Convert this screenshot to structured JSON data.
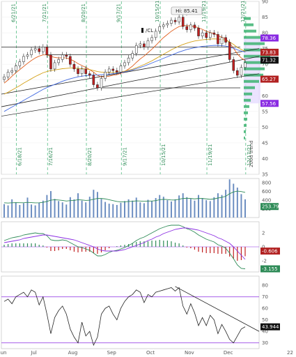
{
  "chart_data": [
    {
      "type": "candlestick",
      "symbol": "/CL",
      "x_ticks": [
        "Jun",
        "Jul",
        "Aug",
        "Sep",
        "Oct",
        "Nov",
        "Dec"
      ],
      "y_ticks": [
        35,
        40,
        45,
        50,
        55,
        60,
        65,
        70,
        75,
        80,
        85,
        90
      ],
      "ylim": [
        35,
        90
      ],
      "high_annotation": "Hi: 85.41",
      "price_tags": [
        {
          "value": 78.36,
          "label": "78.36",
          "color": "#8a2be2"
        },
        {
          "value": 73.83,
          "label": "73.83",
          "color": "#b22222"
        },
        {
          "value": 71.32,
          "label": "71.32",
          "color": "#111111"
        },
        {
          "value": 65.27,
          "label": "65.27",
          "color": "#b22222"
        },
        {
          "value": 57.56,
          "label": "57.56",
          "color": "#8a2be2"
        }
      ],
      "event_dates": [
        "6/18/21",
        "7/16/21",
        "8/20/21",
        "9/17/21",
        "10/15/21",
        "11/19/21",
        "12/17/21"
      ],
      "top_date_labels": [
        "6/21/21",
        "7/21/21",
        "8/20/21",
        "9/17/21",
        "10/15/21",
        "11/19/21",
        "12/21/21"
      ],
      "corner_label": "200d trend",
      "series": [
        {
          "name": "Close",
          "values": [
            66.0,
            67.5,
            68.0,
            69.5,
            70.8,
            72.5,
            73.0,
            74.5,
            75.0,
            74.0,
            75.5,
            73.0,
            68.5,
            70.5,
            71.5,
            73.0,
            72.5,
            70.0,
            68.5,
            67.0,
            68.5,
            67.0,
            66.5,
            63.5,
            62.5,
            65.5,
            67.5,
            68.5,
            68.0,
            67.5,
            69.5,
            70.5,
            72.0,
            73.5,
            76.0,
            76.5,
            75.5,
            77.5,
            78.5,
            80.5,
            82.0,
            82.5,
            83.0,
            84.0,
            83.5,
            85.0,
            82.0,
            81.0,
            82.5,
            81.5,
            79.0,
            80.0,
            78.5,
            80.0,
            79.5,
            76.5,
            78.5,
            77.0,
            71.5,
            68.0,
            66.5,
            69.0,
            70.5
          ]
        }
      ],
      "moving_averages": [
        {
          "color": "#e06020",
          "values": [
            64.0,
            65.0,
            66.2,
            67.3,
            68.3,
            69.3,
            70.3,
            71.2,
            72.0,
            72.6,
            73.0,
            73.0,
            72.5,
            72.2,
            72.0,
            72.1,
            72.0,
            71.6,
            71.0,
            70.2,
            69.6,
            69.0,
            68.3,
            67.5,
            66.5,
            66.0,
            66.0,
            66.2,
            66.5,
            66.7,
            67.1,
            67.7,
            68.5,
            69.4,
            70.6,
            71.7,
            72.6,
            73.7,
            74.8,
            76.0,
            77.3,
            78.5,
            79.5,
            80.5,
            81.3,
            82.0,
            82.3,
            82.3,
            82.2,
            82.0,
            81.6,
            81.1,
            80.5,
            80.1,
            79.8,
            79.1,
            78.6,
            78.1,
            76.8,
            75.1,
            73.3,
            72.0,
            71.2
          ]
        },
        {
          "color": "#d4a017",
          "values": [
            60.5,
            61.1,
            61.8,
            62.5,
            63.2,
            64.0,
            64.7,
            65.4,
            66.1,
            66.7,
            67.3,
            67.7,
            68.0,
            68.2,
            68.4,
            68.6,
            68.7,
            68.8,
            68.8,
            68.7,
            68.6,
            68.5,
            68.3,
            68.0,
            67.7,
            67.5,
            67.4,
            67.4,
            67.4,
            67.5,
            67.6,
            67.8,
            68.1,
            68.4,
            68.9,
            69.4,
            69.9,
            70.5,
            71.1,
            71.8,
            72.5,
            73.2,
            73.9,
            74.6,
            75.2,
            75.8,
            76.3,
            76.7,
            77.1,
            77.4,
            77.6,
            77.8,
            77.9,
            78.0,
            78.1,
            78.0,
            77.9,
            77.7,
            77.1,
            76.3,
            75.4,
            74.7,
            74.1
          ]
        },
        {
          "color": "#4169e1",
          "values": [
            55.0,
            55.7,
            56.4,
            57.1,
            57.8,
            58.5,
            59.2,
            59.9,
            60.6,
            61.3,
            62.0,
            62.6,
            63.1,
            63.6,
            64.1,
            64.6,
            65.0,
            65.4,
            65.7,
            66.0,
            66.2,
            66.4,
            66.5,
            66.6,
            66.6,
            66.7,
            66.8,
            66.9,
            67.0,
            67.2,
            67.4,
            67.6,
            67.9,
            68.2,
            68.6,
            69.0,
            69.4,
            69.9,
            70.4,
            70.9,
            71.4,
            71.9,
            72.4,
            72.9,
            73.4,
            73.9,
            74.3,
            74.7,
            75.0,
            75.3,
            75.5,
            75.7,
            75.8,
            75.9,
            76.0,
            76.0,
            75.9,
            75.8,
            75.5,
            75.1,
            74.6,
            74.2,
            73.9
          ]
        }
      ]
    },
    {
      "type": "bar",
      "name": "Volume",
      "y_ticks": [
        200,
        400,
        600,
        800
      ],
      "ylim": [
        0,
        900
      ],
      "tag": {
        "value": 253.79,
        "label": "253.79",
        "color": "#2e8b57"
      },
      "values": [
        310,
        280,
        420,
        350,
        290,
        330,
        460,
        300,
        280,
        340,
        390,
        520,
        610,
        430,
        380,
        350,
        300,
        470,
        420,
        560,
        390,
        350,
        480,
        640,
        590,
        430,
        360,
        320,
        310,
        290,
        340,
        380,
        420,
        390,
        460,
        350,
        330,
        410,
        380,
        450,
        520,
        480,
        400,
        370,
        420,
        510,
        560,
        470,
        430,
        390,
        520,
        450,
        400,
        380,
        470,
        560,
        520,
        640,
        880,
        780,
        690,
        540,
        420
      ],
      "avg_values": [
        340,
        335,
        340,
        345,
        342,
        340,
        350,
        345,
        338,
        340,
        350,
        370,
        400,
        410,
        405,
        395,
        380,
        390,
        395,
        410,
        405,
        395,
        400,
        420,
        440,
        440,
        430,
        410,
        390,
        370,
        360,
        360,
        370,
        375,
        385,
        380,
        375,
        380,
        380,
        390,
        410,
        420,
        415,
        405,
        405,
        420,
        440,
        445,
        440,
        430,
        440,
        440,
        430,
        420,
        430,
        450,
        465,
        490,
        550,
        590,
        610,
        600,
        580
      ]
    },
    {
      "type": "line",
      "name": "MACD",
      "y_ticks": [
        -2,
        0,
        2
      ],
      "ylim": [
        -3.6,
        3.6
      ],
      "tags": [
        {
          "value": -0.606,
          "label": "-0.606",
          "color": "#b22222"
        },
        {
          "value": -3.155,
          "label": "-3.155",
          "color": "#2e8b57"
        }
      ],
      "series": [
        {
          "color": "#2e8b57",
          "values": [
            0.9,
            1.1,
            1.3,
            1.4,
            1.5,
            1.7,
            1.8,
            1.9,
            2.0,
            1.9,
            1.9,
            1.6,
            1.0,
            0.9,
            0.9,
            1.0,
            0.9,
            0.6,
            0.3,
            0.0,
            -0.1,
            -0.3,
            -0.5,
            -0.9,
            -1.3,
            -1.3,
            -1.1,
            -0.8,
            -0.6,
            -0.5,
            -0.3,
            -0.1,
            0.2,
            0.5,
            0.9,
            1.2,
            1.4,
            1.7,
            2.0,
            2.3,
            2.6,
            2.8,
            3.0,
            3.1,
            3.1,
            3.1,
            2.9,
            2.6,
            2.4,
            2.1,
            1.7,
            1.4,
            1.1,
            0.9,
            0.7,
            0.3,
            0.1,
            -0.2,
            -0.9,
            -1.7,
            -2.6,
            -3.1,
            -3.15
          ]
        },
        {
          "color": "#8a2be2",
          "values": [
            0.6,
            0.7,
            0.8,
            0.9,
            1.0,
            1.2,
            1.3,
            1.4,
            1.5,
            1.6,
            1.7,
            1.7,
            1.6,
            1.5,
            1.4,
            1.3,
            1.2,
            1.1,
            1.0,
            0.8,
            0.6,
            0.4,
            0.2,
            0.0,
            -0.3,
            -0.5,
            -0.6,
            -0.6,
            -0.6,
            -0.6,
            -0.5,
            -0.4,
            -0.2,
            0.0,
            0.2,
            0.4,
            0.6,
            0.9,
            1.1,
            1.4,
            1.6,
            1.9,
            2.1,
            2.3,
            2.5,
            2.6,
            2.7,
            2.7,
            2.6,
            2.5,
            2.4,
            2.2,
            2.0,
            1.8,
            1.6,
            1.3,
            1.1,
            0.8,
            0.5,
            0.0,
            -0.6,
            -1.2,
            -1.8
          ]
        }
      ]
    },
    {
      "type": "line",
      "name": "RSI",
      "y_ticks": [
        30,
        40,
        50,
        60,
        70,
        80
      ],
      "ylim": [
        25,
        88
      ],
      "ref_lines": [
        70,
        30
      ],
      "tag": {
        "value": 43.944,
        "label": "43.944",
        "color": "#111111"
      },
      "values": [
        66,
        68,
        64,
        70,
        72,
        74,
        70,
        76,
        74,
        63,
        70,
        55,
        38,
        52,
        58,
        62,
        55,
        42,
        35,
        30,
        48,
        36,
        40,
        28,
        35,
        55,
        60,
        62,
        55,
        50,
        60,
        66,
        70,
        72,
        76,
        74,
        65,
        72,
        70,
        74,
        75,
        76,
        77,
        78,
        75,
        78,
        62,
        55,
        64,
        56,
        45,
        52,
        45,
        54,
        50,
        38,
        46,
        40,
        33,
        30,
        36,
        42,
        44
      ]
    }
  ]
}
